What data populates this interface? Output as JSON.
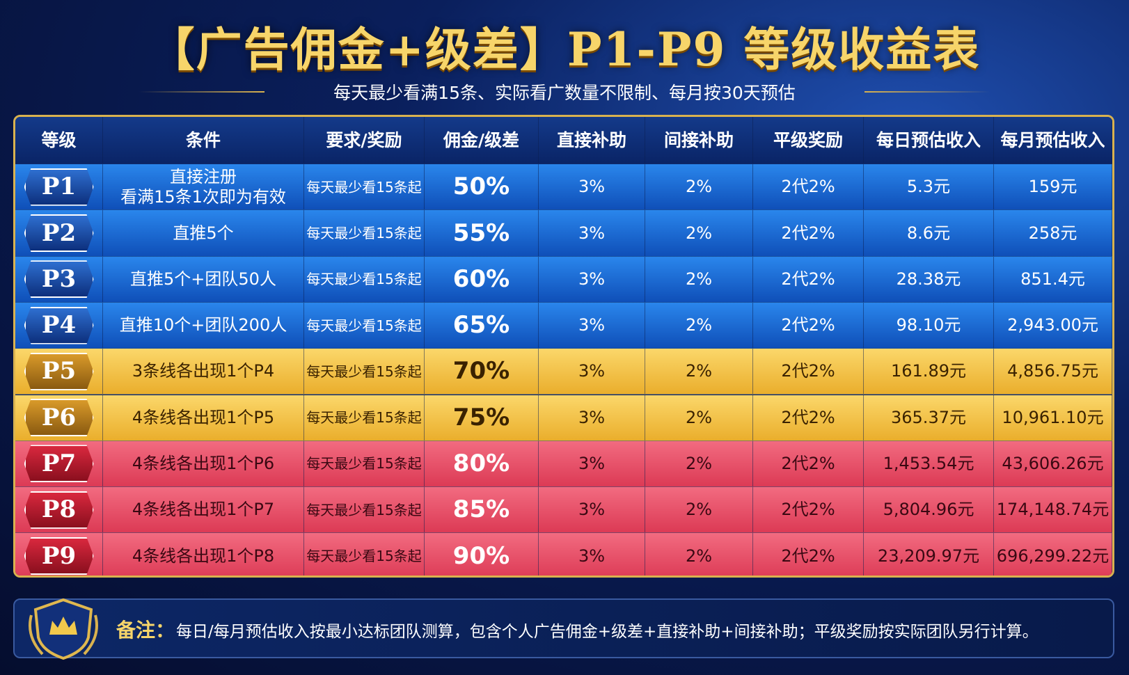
{
  "header": {
    "title": "【广告佣金+级差】P1-P9 等级收益表",
    "subtitle": "每天最少看满15条、实际看广数量不限制、每月按30天预估"
  },
  "table": {
    "columns": [
      "等级",
      "条件",
      "要求/奖励",
      "佣金/级差",
      "直接补助",
      "间接补助",
      "平级奖励",
      "每日预估收入",
      "每月预估收入"
    ],
    "rows": [
      {
        "level": "P1",
        "condition": [
          "直接注册",
          "看满15条1次即为有效"
        ],
        "requirement": "每天最少看15条起",
        "commission": "50%",
        "direct": "3%",
        "indirect": "2%",
        "peer": "2代2%",
        "daily": "5.3元",
        "monthly": "159元"
      },
      {
        "level": "P2",
        "condition": [
          "直推5个"
        ],
        "requirement": "每天最少看15条起",
        "commission": "55%",
        "direct": "3%",
        "indirect": "2%",
        "peer": "2代2%",
        "daily": "8.6元",
        "monthly": "258元"
      },
      {
        "level": "P3",
        "condition": [
          "直推5个+团队50人"
        ],
        "requirement": "每天最少看15条起",
        "commission": "60%",
        "direct": "3%",
        "indirect": "2%",
        "peer": "2代2%",
        "daily": "28.38元",
        "monthly": "851.4元"
      },
      {
        "level": "P4",
        "condition": [
          "直推10个+团队200人"
        ],
        "requirement": "每天最少看15条起",
        "commission": "65%",
        "direct": "3%",
        "indirect": "2%",
        "peer": "2代2%",
        "daily": "98.10元",
        "monthly": "2,943.00元"
      },
      {
        "level": "P5",
        "condition": [
          "3条线各出现1个P4"
        ],
        "requirement": "每天最少看15条起",
        "commission": "70%",
        "direct": "3%",
        "indirect": "2%",
        "peer": "2代2%",
        "daily": "161.89元",
        "monthly": "4,856.75元"
      },
      {
        "level": "P6",
        "condition": [
          "4条线各出现1个P5"
        ],
        "requirement": "每天最少看15条起",
        "commission": "75%",
        "direct": "3%",
        "indirect": "2%",
        "peer": "2代2%",
        "daily": "365.37元",
        "monthly": "10,961.10元"
      },
      {
        "level": "P7",
        "condition": [
          "4条线各出现1个P6"
        ],
        "requirement": "每天最少看15条起",
        "commission": "80%",
        "direct": "3%",
        "indirect": "2%",
        "peer": "2代2%",
        "daily": "1,453.54元",
        "monthly": "43,606.26元"
      },
      {
        "level": "P8",
        "condition": [
          "4条线各出现1个P7"
        ],
        "requirement": "每天最少看15条起",
        "commission": "85%",
        "direct": "3%",
        "indirect": "2%",
        "peer": "2代2%",
        "daily": "5,804.96元",
        "monthly": "174,148.74元"
      },
      {
        "level": "P9",
        "condition": [
          "4条线各出现1个P8"
        ],
        "requirement": "每天最少看15条起",
        "commission": "90%",
        "direct": "3%",
        "indirect": "2%",
        "peer": "2代2%",
        "daily": "23,209.97元",
        "monthly": "696,299.22元"
      }
    ]
  },
  "note": {
    "label": "备注：",
    "text": "每日/每月预估收入按最小达标团队测算，包含个人广告佣金+级差+直接补助+间接补助；平级奖励按实际团队另行计算。"
  }
}
